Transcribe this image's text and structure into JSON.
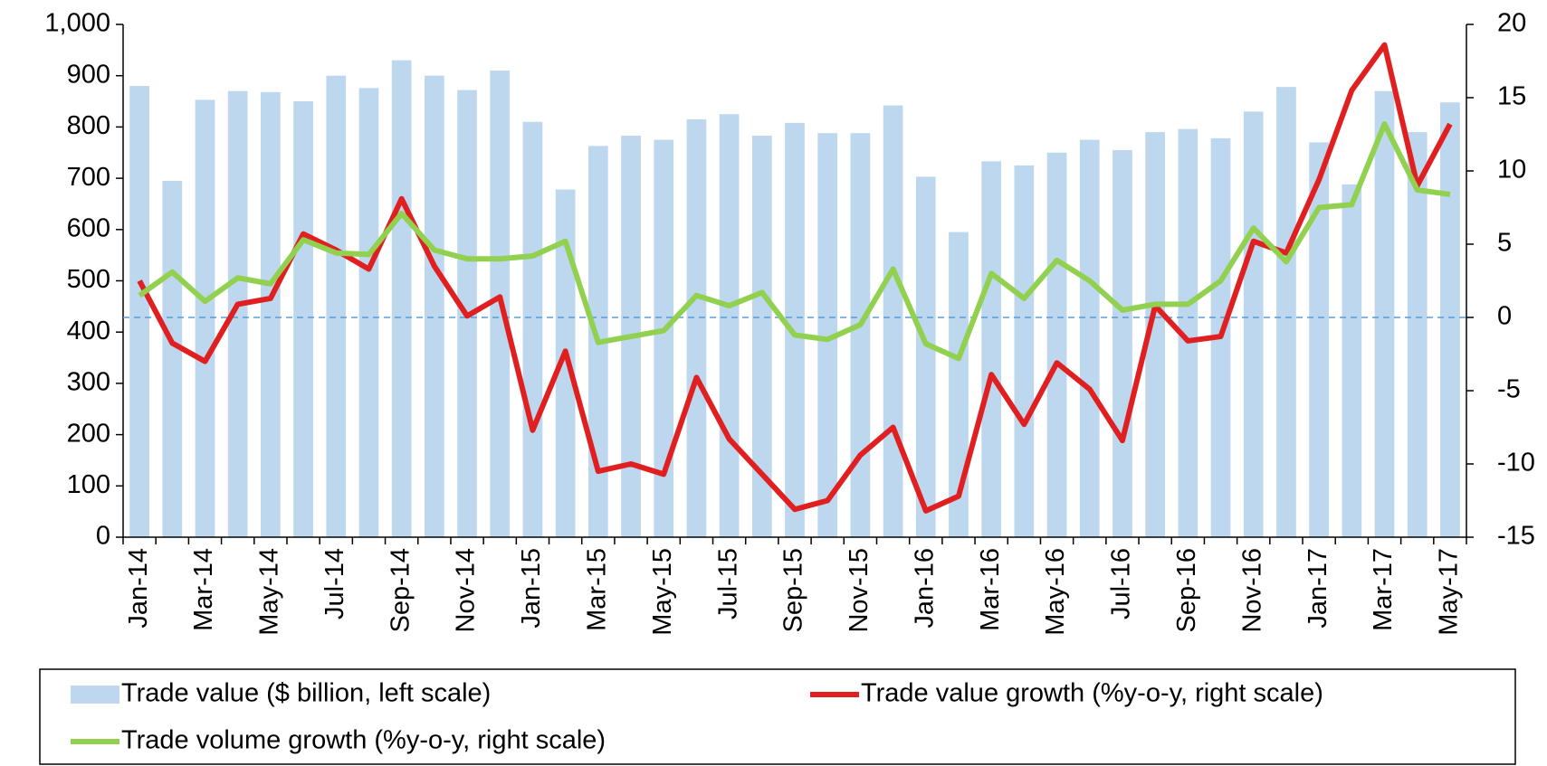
{
  "chart_data": {
    "type": "bar_line",
    "categories": [
      "Jan-14",
      null,
      "Mar-14",
      null,
      "May-14",
      null,
      "Jul-14",
      null,
      "Sep-14",
      null,
      "Nov-14",
      null,
      "Jan-15",
      null,
      "Mar-15",
      null,
      "May-15",
      null,
      "Jul-15",
      null,
      "Sep-15",
      null,
      "Nov-15",
      null,
      "Jan-16",
      null,
      "Mar-16",
      null,
      "May-16",
      null,
      "Jul-16",
      null,
      "Sep-16",
      null,
      "Nov-16",
      null,
      "Jan-17",
      null,
      "Mar-17",
      null,
      "May-17"
    ],
    "series": [
      {
        "name": "Trade value ($ billion, left scale)",
        "type": "bar",
        "color": "#bdd7ee",
        "axis": "y",
        "values": [
          880,
          695,
          853,
          870,
          868,
          850,
          900,
          876,
          930,
          900,
          872,
          910,
          810,
          678,
          763,
          783,
          775,
          815,
          825,
          783,
          808,
          788,
          788,
          842,
          703,
          595,
          733,
          725,
          750,
          775,
          755,
          790,
          796,
          778,
          830,
          878,
          770,
          688,
          870,
          790,
          848
        ]
      },
      {
        "name": "Trade value growth (%y-o-y, right scale)",
        "type": "line",
        "color": "#e02020",
        "axis": "y2",
        "values": [
          2.5,
          -1.75,
          -3.0,
          0.9,
          1.3,
          5.7,
          4.6,
          3.3,
          8.1,
          3.5,
          0.1,
          1.4,
          -7.7,
          -2.3,
          -10.5,
          -10.0,
          -10.7,
          -4.1,
          -8.3,
          -10.7,
          -13.1,
          -12.5,
          -9.4,
          -7.5,
          -13.2,
          -12.2,
          -3.9,
          -7.3,
          -3.1,
          -4.9,
          -8.4,
          0.8,
          -1.6,
          -1.3,
          5.2,
          4.4,
          9.4,
          15.5,
          18.6,
          9.0,
          13.2
        ]
      },
      {
        "name": "Trade volume growth (%y-o-y, right scale)",
        "type": "line",
        "color": "#92d050",
        "axis": "y2",
        "values": [
          1.5,
          3.1,
          1.1,
          2.7,
          2.3,
          5.3,
          4.4,
          4.3,
          7.1,
          4.6,
          4.0,
          4.0,
          4.2,
          5.2,
          -1.7,
          -1.3,
          -0.9,
          1.5,
          0.8,
          1.7,
          -1.2,
          -1.5,
          -0.5,
          3.3,
          -1.8,
          -2.8,
          3.0,
          1.3,
          3.9,
          2.5,
          0.5,
          0.9,
          0.9,
          2.5,
          6.1,
          3.8,
          7.5,
          7.7,
          13.2,
          8.7,
          8.4
        ]
      }
    ],
    "ylim": [
      0,
      1000
    ],
    "yticks": [
      0,
      100,
      200,
      300,
      400,
      500,
      600,
      700,
      800,
      900,
      {
        "value": 1000,
        "label": "1,000"
      }
    ],
    "y2lim": [
      -15,
      20
    ],
    "y2ticks": [
      -15,
      -10,
      -5,
      0,
      5,
      10,
      15,
      20
    ],
    "zero_line": true
  }
}
